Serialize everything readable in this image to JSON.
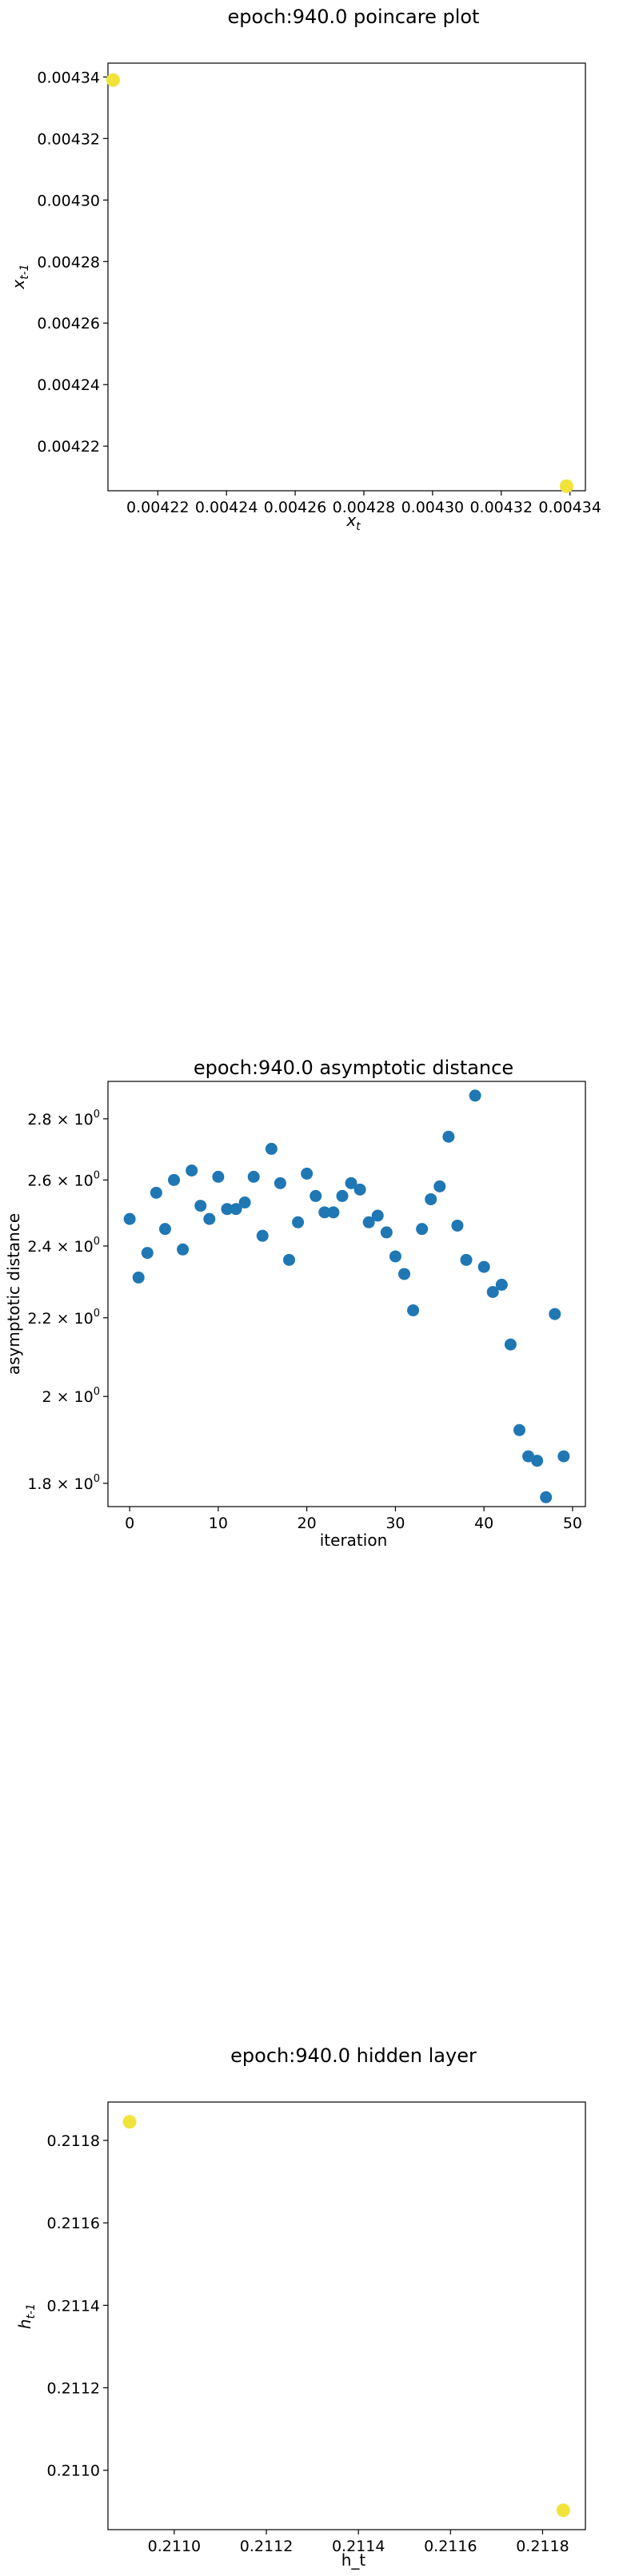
{
  "chart_data": [
    {
      "type": "scatter",
      "title": "epoch:940.0 poincare plot",
      "xlabel": "x",
      "xlabel_sub": "t",
      "ylabel": "x",
      "ylabel_sub": "t-1",
      "xlim": [
        0.0042055,
        0.0043445
      ],
      "ylim": [
        0.0042055,
        0.0043445
      ],
      "xticks": [
        0.00422,
        0.00424,
        0.00426,
        0.00428,
        0.0043,
        0.00432,
        0.00434
      ],
      "xtick_labels": [
        "0.00422",
        "0.00424",
        "0.00426",
        "0.00428",
        "0.00430",
        "0.00432",
        "0.00434"
      ],
      "yticks": [
        0.00422,
        0.00424,
        0.00426,
        0.00428,
        0.0043,
        0.00432,
        0.00434
      ],
      "ytick_labels": [
        "0.00422",
        "0.00424",
        "0.00426",
        "0.00428",
        "0.00430",
        "0.00432",
        "0.00434"
      ],
      "points": [
        {
          "x": 0.004207,
          "y": 0.004339
        },
        {
          "x": 0.004339,
          "y": 0.004207
        }
      ],
      "marker_color": "#f2e33a"
    },
    {
      "type": "scatter",
      "title": "epoch:940.0 asymptotic distance",
      "xlabel": "iteration",
      "ylabel": "asymptotic distance",
      "yscale": "log",
      "xlim": [
        -2.45,
        51.45
      ],
      "ylim": [
        1.75,
        2.93
      ],
      "xticks": [
        0,
        10,
        20,
        30,
        40,
        50
      ],
      "xtick_labels": [
        "0",
        "10",
        "20",
        "30",
        "40",
        "50"
      ],
      "yticks": [
        1.8,
        2.0,
        2.2,
        2.4,
        2.6,
        2.8
      ],
      "ytick_mantissas": [
        "1.8",
        "2",
        "2.2",
        "2.4",
        "2.6",
        "2.8"
      ],
      "ytick_base": "10",
      "ytick_exp": "0",
      "x": [
        0,
        1,
        2,
        3,
        4,
        5,
        6,
        7,
        8,
        9,
        10,
        11,
        12,
        13,
        14,
        15,
        16,
        17,
        18,
        19,
        20,
        21,
        22,
        23,
        24,
        25,
        26,
        27,
        28,
        29,
        30,
        31,
        32,
        33,
        34,
        35,
        36,
        37,
        38,
        39,
        40,
        41,
        42,
        43,
        44,
        45,
        46,
        47,
        48,
        49
      ],
      "y": [
        2.48,
        2.31,
        2.38,
        2.56,
        2.45,
        2.6,
        2.39,
        2.63,
        2.52,
        2.48,
        2.61,
        2.51,
        2.51,
        2.53,
        2.61,
        2.43,
        2.7,
        2.59,
        2.36,
        2.47,
        2.62,
        2.55,
        2.5,
        2.5,
        2.55,
        2.59,
        2.57,
        2.47,
        2.49,
        2.44,
        2.37,
        2.32,
        2.22,
        2.45,
        2.54,
        2.58,
        2.74,
        2.46,
        2.36,
        2.88,
        2.34,
        2.27,
        2.29,
        2.13,
        1.92,
        1.86,
        1.85,
        1.77,
        2.21,
        1.86
      ],
      "marker_color": "#1f77b4"
    },
    {
      "type": "scatter",
      "title": "epoch:940.0 hidden layer",
      "xlabel": "h_t",
      "ylabel": "h",
      "ylabel_sub": "t-1",
      "xlim": [
        0.210856,
        0.211893
      ],
      "ylim": [
        0.210856,
        0.211893
      ],
      "xticks": [
        0.211,
        0.2112,
        0.2114,
        0.2116,
        0.2118
      ],
      "xtick_labels": [
        "0.2110",
        "0.2112",
        "0.2114",
        "0.2116",
        "0.2118"
      ],
      "yticks": [
        0.211,
        0.2112,
        0.2114,
        0.2116,
        0.2118
      ],
      "ytick_labels": [
        "0.2110",
        "0.2112",
        "0.2114",
        "0.2116",
        "0.2118"
      ],
      "points": [
        {
          "x": 0.210903,
          "y": 0.211845
        },
        {
          "x": 0.211845,
          "y": 0.210903
        }
      ],
      "marker_color": "#f2e33a"
    }
  ]
}
